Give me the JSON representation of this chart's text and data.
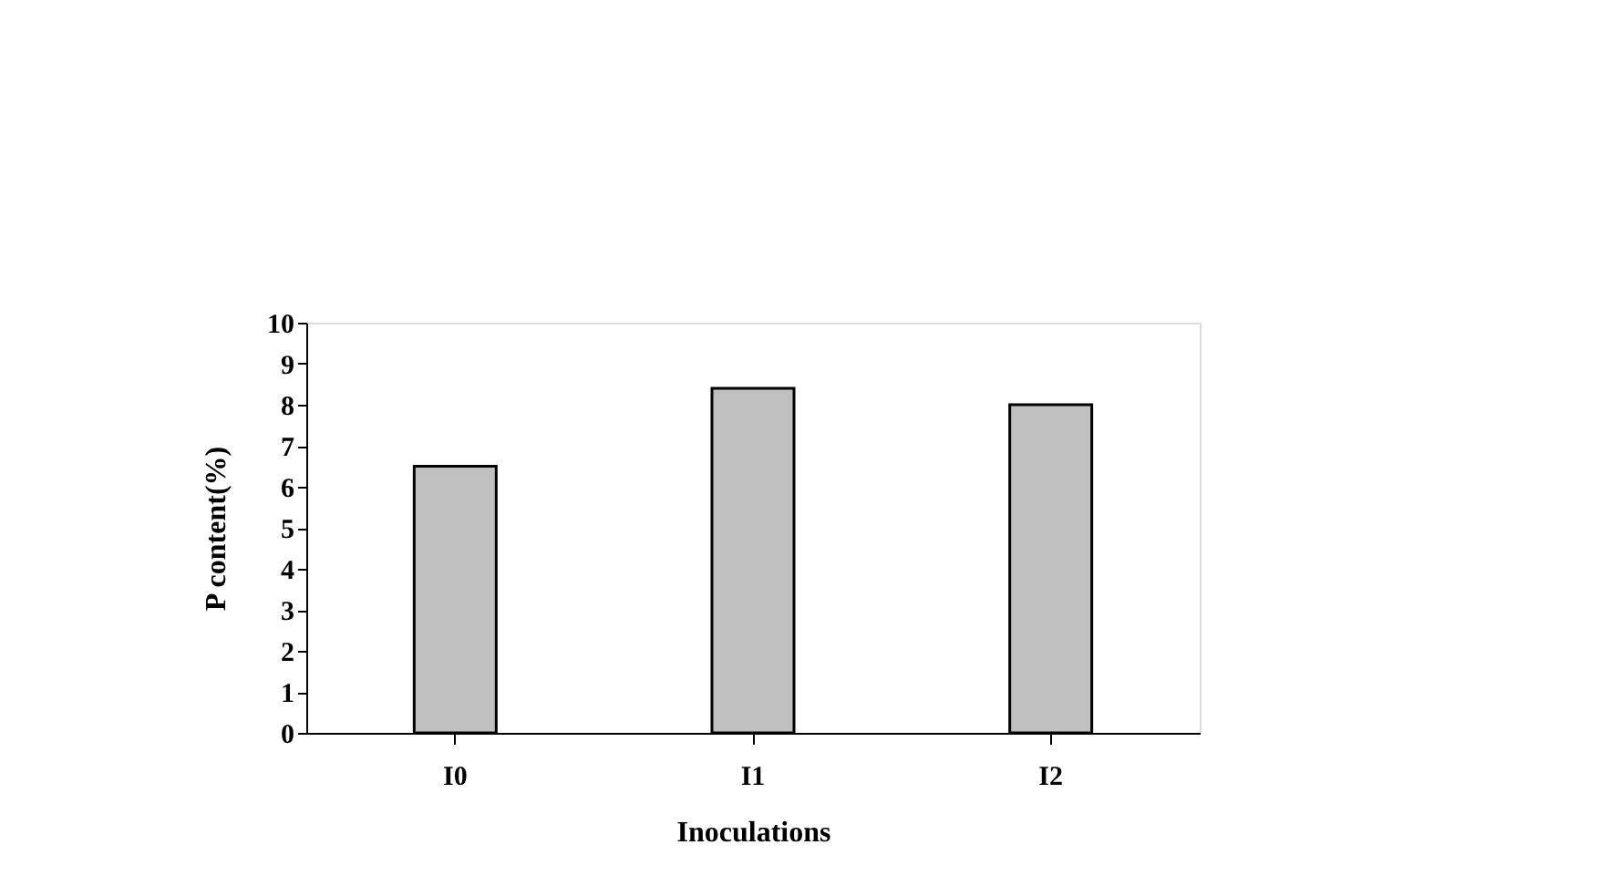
{
  "chart_data": {
    "type": "bar",
    "xlabel": "Inoculations",
    "ylabel": "P content(%)",
    "categories": [
      "I0",
      "I1",
      "I2"
    ],
    "values": [
      6.5,
      8.4,
      8.0
    ],
    "color": "#c0c0c0",
    "ylim": [
      0,
      10
    ],
    "yticks": [
      0,
      1,
      2,
      3,
      4,
      5,
      6,
      7,
      8,
      9,
      10
    ],
    "grid": false
  }
}
